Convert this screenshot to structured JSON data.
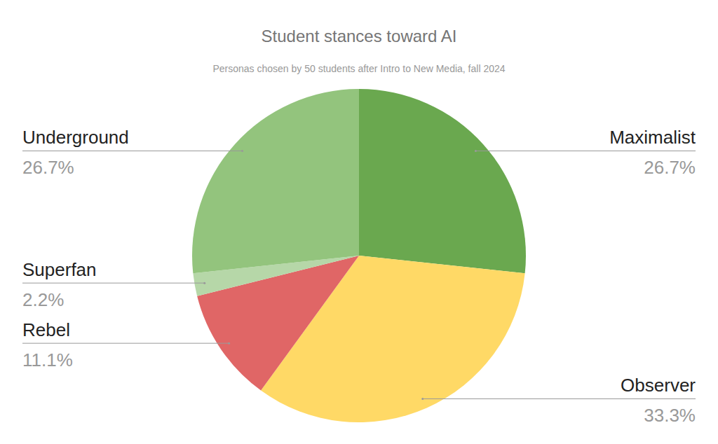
{
  "chart_data": {
    "type": "pie",
    "title": "Student stances toward AI",
    "subtitle": "Personas chosen by 50 students after Intro to New Media, fall 2024",
    "categories": [
      "Maximalist",
      "Observer",
      "Rebel",
      "Superfan",
      "Underground"
    ],
    "values": [
      26.7,
      33.3,
      11.1,
      2.2,
      26.7
    ],
    "value_labels": [
      "26.7%",
      "33.3%",
      "11.1%",
      "2.2%",
      "26.7%"
    ],
    "colors": [
      "#6aa84f",
      "#ffd966",
      "#e06666",
      "#b6d7a8",
      "#93c47d"
    ],
    "data_labels": true
  }
}
